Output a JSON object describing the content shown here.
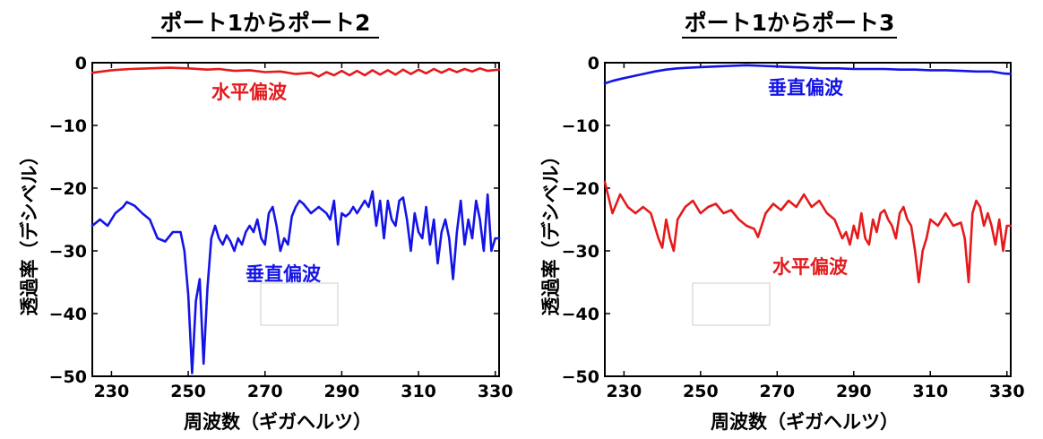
{
  "chart_data": [
    {
      "type": "line",
      "title": "ポート1からポート2",
      "xlabel": "周波数（ギガヘルツ）",
      "ylabel": "透過率（デシベル）",
      "xlim": [
        225,
        331
      ],
      "ylim": [
        -50,
        0
      ],
      "xticks": [
        "230",
        "250",
        "270",
        "290",
        "310",
        "330"
      ],
      "yticks": [
        "0",
        "−10",
        "−20",
        "−30",
        "−40",
        "−50"
      ],
      "grid": false,
      "series": [
        {
          "name": "水平偏波",
          "color": "#e41a1c",
          "points": [
            [
              225,
              -1.6
            ],
            [
              230,
              -1.2
            ],
            [
              235,
              -1.0
            ],
            [
              240,
              -0.9
            ],
            [
              245,
              -0.8
            ],
            [
              250,
              -0.9
            ],
            [
              255,
              -1.1
            ],
            [
              258,
              -1.0
            ],
            [
              262,
              -1.3
            ],
            [
              266,
              -1.2
            ],
            [
              270,
              -1.5
            ],
            [
              274,
              -1.4
            ],
            [
              278,
              -1.8
            ],
            [
              282,
              -1.6
            ],
            [
              284,
              -2.2
            ],
            [
              286,
              -1.5
            ],
            [
              288,
              -2.0
            ],
            [
              290,
              -1.3
            ],
            [
              292,
              -2.0
            ],
            [
              294,
              -1.3
            ],
            [
              296,
              -2.0
            ],
            [
              298,
              -1.2
            ],
            [
              300,
              -1.9
            ],
            [
              302,
              -1.2
            ],
            [
              304,
              -1.9
            ],
            [
              306,
              -1.1
            ],
            [
              308,
              -1.8
            ],
            [
              310,
              -1.1
            ],
            [
              312,
              -1.7
            ],
            [
              314,
              -1.0
            ],
            [
              316,
              -1.6
            ],
            [
              318,
              -1.0
            ],
            [
              320,
              -1.5
            ],
            [
              322,
              -1.0
            ],
            [
              324,
              -1.4
            ],
            [
              326,
              -0.9
            ],
            [
              328,
              -1.3
            ],
            [
              331,
              -1.1
            ]
          ]
        },
        {
          "name": "垂直偏波",
          "color": "#1414e6",
          "points": [
            [
              225,
              -26
            ],
            [
              227,
              -25
            ],
            [
              229,
              -26
            ],
            [
              231,
              -24
            ],
            [
              233,
              -23
            ],
            [
              234,
              -22.2
            ],
            [
              236,
              -22.8
            ],
            [
              238,
              -24
            ],
            [
              240,
              -25
            ],
            [
              242,
              -28
            ],
            [
              244,
              -28.5
            ],
            [
              246,
              -27
            ],
            [
              248,
              -27
            ],
            [
              249,
              -30
            ],
            [
              250,
              -37
            ],
            [
              251,
              -49.5
            ],
            [
              252,
              -38
            ],
            [
              253,
              -34.5
            ],
            [
              254,
              -48
            ],
            [
              255,
              -36
            ],
            [
              256,
              -28
            ],
            [
              257,
              -26
            ],
            [
              258,
              -28
            ],
            [
              259,
              -29
            ],
            [
              260,
              -27.5
            ],
            [
              261,
              -28.5
            ],
            [
              262,
              -30
            ],
            [
              263,
              -28
            ],
            [
              264,
              -29
            ],
            [
              265,
              -27
            ],
            [
              266,
              -26
            ],
            [
              267,
              -27
            ],
            [
              268,
              -25
            ],
            [
              269,
              -28
            ],
            [
              270,
              -29
            ],
            [
              271,
              -24
            ],
            [
              272,
              -23
            ],
            [
              273,
              -26
            ],
            [
              274,
              -30
            ],
            [
              275,
              -28
            ],
            [
              276,
              -29
            ],
            [
              277,
              -24.5
            ],
            [
              278,
              -23
            ],
            [
              279,
              -22
            ],
            [
              280,
              -22.5
            ],
            [
              282,
              -24
            ],
            [
              284,
              -23
            ],
            [
              286,
              -24
            ],
            [
              287,
              -25
            ],
            [
              288,
              -22
            ],
            [
              289,
              -29
            ],
            [
              290,
              -24
            ],
            [
              291,
              -24.5
            ],
            [
              292,
              -24
            ],
            [
              293,
              -23
            ],
            [
              294,
              -24
            ],
            [
              295,
              -23
            ],
            [
              296,
              -22
            ],
            [
              297,
              -23
            ],
            [
              298,
              -20.5
            ],
            [
              299,
              -26
            ],
            [
              300,
              -22
            ],
            [
              301,
              -28
            ],
            [
              302,
              -22
            ],
            [
              303,
              -25
            ],
            [
              304,
              -26
            ],
            [
              305,
              -22
            ],
            [
              306,
              -21.5
            ],
            [
              307,
              -25
            ],
            [
              308,
              -30
            ],
            [
              309,
              -24
            ],
            [
              310,
              -27
            ],
            [
              311,
              -28
            ],
            [
              312,
              -23
            ],
            [
              313,
              -29
            ],
            [
              314,
              -25
            ],
            [
              315,
              -32
            ],
            [
              316,
              -27
            ],
            [
              317,
              -25
            ],
            [
              318,
              -28
            ],
            [
              319,
              -34.5
            ],
            [
              320,
              -27
            ],
            [
              321,
              -22
            ],
            [
              322,
              -29
            ],
            [
              323,
              -25
            ],
            [
              324,
              -28
            ],
            [
              325,
              -22
            ],
            [
              326,
              -25
            ],
            [
              327,
              -30
            ],
            [
              328,
              -21
            ],
            [
              329,
              -30
            ],
            [
              330,
              -28
            ],
            [
              331,
              -28
            ]
          ]
        }
      ]
    },
    {
      "type": "line",
      "title": "ポート1からポート3",
      "xlabel": "周波数（ギガヘルツ）",
      "ylabel": "透過率（デシベル）",
      "xlim": [
        225,
        331
      ],
      "ylim": [
        -50,
        0
      ],
      "xticks": [
        "230",
        "250",
        "270",
        "290",
        "310",
        "330"
      ],
      "yticks": [
        "0",
        "−10",
        "−20",
        "−30",
        "−40",
        "−50"
      ],
      "grid": false,
      "series": [
        {
          "name": "垂直偏波",
          "color": "#1414e6",
          "points": [
            [
              225,
              -3.3
            ],
            [
              227,
              -2.9
            ],
            [
              229,
              -2.6
            ],
            [
              232,
              -2.2
            ],
            [
              235,
              -1.8
            ],
            [
              238,
              -1.4
            ],
            [
              241,
              -1.1
            ],
            [
              244,
              -0.9
            ],
            [
              247,
              -0.8
            ],
            [
              250,
              -0.7
            ],
            [
              254,
              -0.6
            ],
            [
              258,
              -0.5
            ],
            [
              262,
              -0.4
            ],
            [
              266,
              -0.5
            ],
            [
              270,
              -0.6
            ],
            [
              274,
              -0.7
            ],
            [
              278,
              -0.8
            ],
            [
              282,
              -0.9
            ],
            [
              286,
              -0.9
            ],
            [
              290,
              -1.0
            ],
            [
              294,
              -1.0
            ],
            [
              298,
              -1.0
            ],
            [
              302,
              -1.1
            ],
            [
              306,
              -1.1
            ],
            [
              310,
              -1.2
            ],
            [
              314,
              -1.2
            ],
            [
              318,
              -1.3
            ],
            [
              322,
              -1.4
            ],
            [
              326,
              -1.4
            ],
            [
              329,
              -1.7
            ],
            [
              331,
              -1.8
            ]
          ]
        },
        {
          "name": "水平偏波",
          "color": "#e41a1c",
          "points": [
            [
              225,
              -19
            ],
            [
              227,
              -24
            ],
            [
              229,
              -21
            ],
            [
              231,
              -23
            ],
            [
              233,
              -24
            ],
            [
              235,
              -23
            ],
            [
              237,
              -24
            ],
            [
              239,
              -28
            ],
            [
              240,
              -29.5
            ],
            [
              241,
              -25
            ],
            [
              242,
              -28
            ],
            [
              243,
              -30
            ],
            [
              244,
              -25
            ],
            [
              246,
              -23
            ],
            [
              248,
              -22
            ],
            [
              250,
              -24
            ],
            [
              252,
              -23
            ],
            [
              254,
              -22.5
            ],
            [
              256,
              -24
            ],
            [
              258,
              -23.5
            ],
            [
              260,
              -25
            ],
            [
              262,
              -26
            ],
            [
              264,
              -26.5
            ],
            [
              265,
              -27.8
            ],
            [
              267,
              -24
            ],
            [
              269,
              -22.5
            ],
            [
              271,
              -23.5
            ],
            [
              273,
              -22
            ],
            [
              275,
              -23
            ],
            [
              277,
              -21
            ],
            [
              279,
              -23
            ],
            [
              281,
              -22
            ],
            [
              283,
              -24
            ],
            [
              285,
              -25
            ],
            [
              287,
              -28
            ],
            [
              288,
              -27
            ],
            [
              289,
              -29
            ],
            [
              290,
              -26
            ],
            [
              291,
              -28
            ],
            [
              292,
              -24
            ],
            [
              293,
              -28
            ],
            [
              294,
              -29
            ],
            [
              295,
              -25
            ],
            [
              296,
              -27
            ],
            [
              297,
              -24
            ],
            [
              298,
              -23.5
            ],
            [
              299,
              -25
            ],
            [
              300,
              -26
            ],
            [
              301,
              -28
            ],
            [
              302,
              -24
            ],
            [
              303,
              -23
            ],
            [
              304,
              -25
            ],
            [
              305,
              -26
            ],
            [
              306,
              -30
            ],
            [
              307,
              -35
            ],
            [
              308,
              -30
            ],
            [
              309,
              -28
            ],
            [
              310,
              -25
            ],
            [
              312,
              -26
            ],
            [
              314,
              -24
            ],
            [
              316,
              -26
            ],
            [
              318,
              -25.5
            ],
            [
              319,
              -28
            ],
            [
              320,
              -35
            ],
            [
              321,
              -24
            ],
            [
              322,
              -22
            ],
            [
              323,
              -23
            ],
            [
              324,
              -26
            ],
            [
              325,
              -24
            ],
            [
              326,
              -26
            ],
            [
              327,
              -29
            ],
            [
              328,
              -25
            ],
            [
              329,
              -30
            ],
            [
              330,
              -26
            ],
            [
              331,
              -26
            ]
          ]
        }
      ]
    }
  ],
  "annotations": [
    {
      "text": "水平偏波",
      "color": "#e41a1c"
    },
    {
      "text": "垂直偏波",
      "color": "#1414e6"
    },
    {
      "text": "垂直偏波",
      "color": "#1414e6"
    },
    {
      "text": "水平偏波",
      "color": "#e41a1c"
    }
  ]
}
